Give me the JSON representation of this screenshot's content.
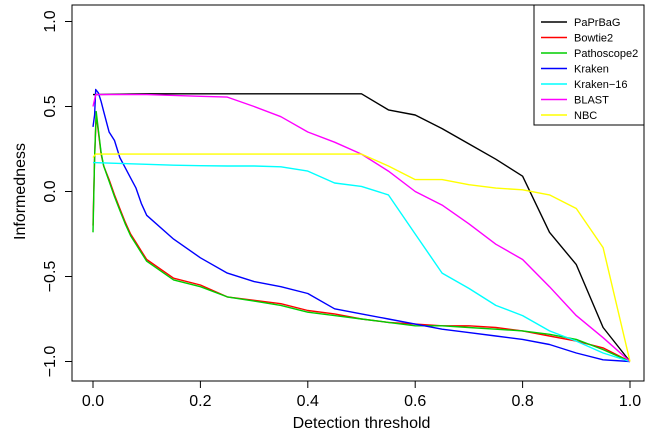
{
  "chart_data": {
    "type": "line",
    "title": "",
    "xlabel": "Detection threshold",
    "ylabel": "Informedness",
    "xlim": [
      0,
      1
    ],
    "ylim": [
      -1,
      1
    ],
    "x_ticks": [
      0,
      0.2,
      0.4,
      0.6,
      0.8,
      1
    ],
    "x_tick_labels": [
      "0.0",
      "0.2",
      "0.4",
      "0.6",
      "0.8",
      "1.0"
    ],
    "y_ticks": [
      -1,
      -0.5,
      0,
      0.5,
      1
    ],
    "y_tick_labels": [
      "−1.0",
      "−0.5",
      "0.0",
      "0.5",
      "1.0"
    ],
    "grid": false,
    "legend_position": "top-right",
    "series": [
      {
        "name": "PaPrBaG",
        "color": "#000000",
        "points": [
          [
            0,
            0.57
          ],
          [
            0.1,
            0.575
          ],
          [
            0.2,
            0.575
          ],
          [
            0.3,
            0.575
          ],
          [
            0.4,
            0.575
          ],
          [
            0.5,
            0.575
          ],
          [
            0.55,
            0.48
          ],
          [
            0.6,
            0.45
          ],
          [
            0.65,
            0.37
          ],
          [
            0.7,
            0.28
          ],
          [
            0.75,
            0.19
          ],
          [
            0.8,
            0.09
          ],
          [
            0.85,
            -0.24
          ],
          [
            0.9,
            -0.43
          ],
          [
            0.95,
            -0.8
          ],
          [
            1.0,
            -1.0
          ]
        ]
      },
      {
        "name": "Bowtie2",
        "color": "#ff0000",
        "points": [
          [
            0,
            -0.2
          ],
          [
            0.003,
            0.2
          ],
          [
            0.006,
            0.45
          ],
          [
            0.01,
            0.35
          ],
          [
            0.015,
            0.22
          ],
          [
            0.02,
            0.15
          ],
          [
            0.03,
            0.07
          ],
          [
            0.04,
            -0.02
          ],
          [
            0.05,
            -0.1
          ],
          [
            0.06,
            -0.18
          ],
          [
            0.07,
            -0.25
          ],
          [
            0.08,
            -0.3
          ],
          [
            0.09,
            -0.35
          ],
          [
            0.1,
            -0.4
          ],
          [
            0.15,
            -0.51
          ],
          [
            0.2,
            -0.55
          ],
          [
            0.25,
            -0.62
          ],
          [
            0.3,
            -0.64
          ],
          [
            0.35,
            -0.66
          ],
          [
            0.4,
            -0.7
          ],
          [
            0.45,
            -0.72
          ],
          [
            0.5,
            -0.75
          ],
          [
            0.55,
            -0.77
          ],
          [
            0.6,
            -0.78
          ],
          [
            0.65,
            -0.79
          ],
          [
            0.7,
            -0.79
          ],
          [
            0.75,
            -0.8
          ],
          [
            0.8,
            -0.82
          ],
          [
            0.85,
            -0.85
          ],
          [
            0.9,
            -0.88
          ],
          [
            0.95,
            -0.92
          ],
          [
            1.0,
            -1.0
          ]
        ]
      },
      {
        "name": "Pathoscope2",
        "color": "#00cd00",
        "points": [
          [
            0,
            -0.24
          ],
          [
            0.003,
            0.2
          ],
          [
            0.006,
            0.47
          ],
          [
            0.01,
            0.36
          ],
          [
            0.015,
            0.23
          ],
          [
            0.02,
            0.15
          ],
          [
            0.03,
            0.06
          ],
          [
            0.04,
            -0.03
          ],
          [
            0.05,
            -0.11
          ],
          [
            0.06,
            -0.19
          ],
          [
            0.07,
            -0.26
          ],
          [
            0.08,
            -0.31
          ],
          [
            0.09,
            -0.36
          ],
          [
            0.1,
            -0.41
          ],
          [
            0.15,
            -0.52
          ],
          [
            0.2,
            -0.56
          ],
          [
            0.25,
            -0.62
          ],
          [
            0.3,
            -0.645
          ],
          [
            0.35,
            -0.67
          ],
          [
            0.4,
            -0.71
          ],
          [
            0.45,
            -0.73
          ],
          [
            0.5,
            -0.75
          ],
          [
            0.55,
            -0.77
          ],
          [
            0.6,
            -0.79
          ],
          [
            0.65,
            -0.79
          ],
          [
            0.7,
            -0.8
          ],
          [
            0.75,
            -0.81
          ],
          [
            0.8,
            -0.82
          ],
          [
            0.85,
            -0.84
          ],
          [
            0.9,
            -0.87
          ],
          [
            0.95,
            -0.93
          ],
          [
            1.0,
            -1.0
          ]
        ]
      },
      {
        "name": "Kraken",
        "color": "#0000ff",
        "points": [
          [
            0,
            0.38
          ],
          [
            0.003,
            0.45
          ],
          [
            0.005,
            0.6
          ],
          [
            0.01,
            0.58
          ],
          [
            0.015,
            0.53
          ],
          [
            0.02,
            0.47
          ],
          [
            0.03,
            0.35
          ],
          [
            0.04,
            0.3
          ],
          [
            0.05,
            0.2
          ],
          [
            0.06,
            0.14
          ],
          [
            0.07,
            0.08
          ],
          [
            0.08,
            0.02
          ],
          [
            0.09,
            -0.07
          ],
          [
            0.1,
            -0.14
          ],
          [
            0.15,
            -0.28
          ],
          [
            0.2,
            -0.39
          ],
          [
            0.25,
            -0.48
          ],
          [
            0.3,
            -0.53
          ],
          [
            0.35,
            -0.56
          ],
          [
            0.4,
            -0.6
          ],
          [
            0.45,
            -0.69
          ],
          [
            0.5,
            -0.72
          ],
          [
            0.55,
            -0.75
          ],
          [
            0.6,
            -0.78
          ],
          [
            0.65,
            -0.81
          ],
          [
            0.7,
            -0.83
          ],
          [
            0.75,
            -0.85
          ],
          [
            0.8,
            -0.87
          ],
          [
            0.85,
            -0.9
          ],
          [
            0.9,
            -0.95
          ],
          [
            0.95,
            -0.99
          ],
          [
            1.0,
            -1.0
          ]
        ]
      },
      {
        "name": "Kraken−16",
        "color": "#00ffff",
        "points": [
          [
            0,
            0.17
          ],
          [
            0.05,
            0.165
          ],
          [
            0.1,
            0.16
          ],
          [
            0.15,
            0.155
          ],
          [
            0.2,
            0.152
          ],
          [
            0.25,
            0.15
          ],
          [
            0.3,
            0.15
          ],
          [
            0.35,
            0.145
          ],
          [
            0.4,
            0.12
          ],
          [
            0.45,
            0.05
          ],
          [
            0.5,
            0.03
          ],
          [
            0.55,
            -0.02
          ],
          [
            0.6,
            -0.25
          ],
          [
            0.65,
            -0.48
          ],
          [
            0.7,
            -0.57
          ],
          [
            0.75,
            -0.67
          ],
          [
            0.8,
            -0.73
          ],
          [
            0.85,
            -0.82
          ],
          [
            0.9,
            -0.88
          ],
          [
            0.95,
            -0.95
          ],
          [
            1.0,
            -1.0
          ]
        ]
      },
      {
        "name": "BLAST",
        "color": "#ff00ff",
        "points": [
          [
            0,
            0.5
          ],
          [
            0.005,
            0.57
          ],
          [
            0.05,
            0.57
          ],
          [
            0.1,
            0.57
          ],
          [
            0.15,
            0.565
          ],
          [
            0.2,
            0.56
          ],
          [
            0.25,
            0.555
          ],
          [
            0.3,
            0.5
          ],
          [
            0.35,
            0.44
          ],
          [
            0.4,
            0.35
          ],
          [
            0.45,
            0.29
          ],
          [
            0.5,
            0.22
          ],
          [
            0.55,
            0.12
          ],
          [
            0.6,
            0.0
          ],
          [
            0.65,
            -0.08
          ],
          [
            0.7,
            -0.19
          ],
          [
            0.75,
            -0.31
          ],
          [
            0.8,
            -0.4
          ],
          [
            0.85,
            -0.56
          ],
          [
            0.9,
            -0.73
          ],
          [
            0.95,
            -0.86
          ],
          [
            1.0,
            -1.0
          ]
        ]
      },
      {
        "name": "NBC",
        "color": "#ffff00",
        "points": [
          [
            0,
            0.2
          ],
          [
            0.005,
            0.22
          ],
          [
            0.1,
            0.22
          ],
          [
            0.2,
            0.22
          ],
          [
            0.3,
            0.22
          ],
          [
            0.4,
            0.22
          ],
          [
            0.5,
            0.22
          ],
          [
            0.55,
            0.15
          ],
          [
            0.6,
            0.07
          ],
          [
            0.65,
            0.07
          ],
          [
            0.7,
            0.04
          ],
          [
            0.75,
            0.02
          ],
          [
            0.8,
            0.01
          ],
          [
            0.85,
            -0.02
          ],
          [
            0.9,
            -0.1
          ],
          [
            0.95,
            -0.33
          ],
          [
            1.0,
            -1.0
          ]
        ]
      }
    ]
  }
}
